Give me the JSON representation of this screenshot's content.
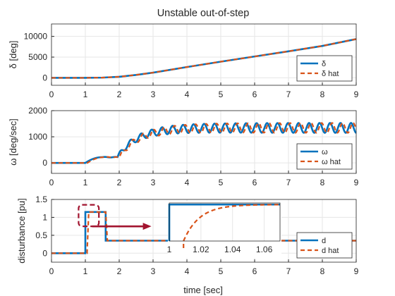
{
  "figure": {
    "title": "Unstable out-of-step",
    "xlabel": "time [sec]"
  },
  "colors": {
    "series1": "#0072BD",
    "series2": "#D95319",
    "grid": "#e6e6e6",
    "axis": "#262626",
    "arrow": "#A2142F",
    "box": "#A2142F"
  },
  "chart_data": [
    {
      "type": "line",
      "title": "Unstable out-of-step",
      "ylabel": "δ [deg]",
      "xlim": [
        0,
        9
      ],
      "ylim": [
        -1800,
        13000
      ],
      "xticks": [
        "0",
        "1",
        "2",
        "3",
        "4",
        "5",
        "6",
        "7",
        "8",
        "9"
      ],
      "yticks": [
        {
          "v": 0,
          "label": "0"
        },
        {
          "v": 5000,
          "label": "5000"
        },
        {
          "v": 10000,
          "label": "10000"
        }
      ],
      "grid": true,
      "legend_location": "lower-right",
      "x": [
        0,
        1,
        1.5,
        2,
        2.5,
        3,
        4,
        5,
        6,
        7,
        8,
        9
      ],
      "series": [
        {
          "name": "δ",
          "style": "solid",
          "values": [
            0,
            0,
            50,
            250,
            700,
            1250,
            2600,
            3900,
            5150,
            6400,
            7700,
            9350
          ]
        },
        {
          "name": "δ hat",
          "style": "dashed",
          "values": [
            0,
            0,
            50,
            250,
            700,
            1250,
            2600,
            3900,
            5150,
            6400,
            7700,
            9350
          ]
        }
      ]
    },
    {
      "type": "line",
      "ylabel": "ω [deg/sec]",
      "xlim": [
        0,
        9
      ],
      "ylim": [
        -400,
        2000
      ],
      "xticks": [
        "0",
        "1",
        "2",
        "3",
        "4",
        "5",
        "6",
        "7",
        "8",
        "9"
      ],
      "yticks": [
        {
          "v": 0,
          "label": "0"
        },
        {
          "v": 1000,
          "label": "1000"
        },
        {
          "v": 2000,
          "label": "2000"
        }
      ],
      "grid": true,
      "legend_location": "lower-right",
      "model": {
        "t_start": 1.0,
        "plateau": 220,
        "t_rise": 1.95,
        "mean_final": 1290,
        "tau_mean": 0.6,
        "amp_final": 190,
        "amp_start": 80,
        "tau_amp": 1.5,
        "period": 0.31,
        "hat_lag": 0.06
      },
      "series": [
        {
          "name": "ω",
          "style": "solid"
        },
        {
          "name": "ω hat",
          "style": "dashed"
        }
      ]
    },
    {
      "type": "line",
      "ylabel": "disturbance [pu]",
      "xlim": [
        0,
        9
      ],
      "ylim": [
        -0.25,
        1.5
      ],
      "xticks": [
        "0",
        "1",
        "2",
        "3",
        "4",
        "5",
        "6",
        "7",
        "8",
        "9"
      ],
      "yticks": [
        {
          "v": 0,
          "label": "0"
        },
        {
          "v": 0.5,
          "label": "0.5"
        },
        {
          "v": 1,
          "label": "1"
        },
        {
          "v": 1.5,
          "label": "1.5"
        }
      ],
      "grid": true,
      "legend_location": "lower-right",
      "series": [
        {
          "name": "d",
          "style": "solid",
          "x": [
            0,
            1,
            1,
            1.6,
            1.6,
            9
          ],
          "values": [
            0,
            0,
            1.15,
            1.15,
            0.35,
            0.35
          ]
        },
        {
          "name": "d hat",
          "style": "dashed",
          "x": [
            0,
            1.05,
            1.1,
            1.6,
            1.65,
            9
          ],
          "values": [
            0,
            0,
            1.15,
            1.15,
            0.35,
            0.35
          ]
        }
      ],
      "highlight_box": {
        "x": [
          0.8,
          1.4
        ],
        "y": [
          0.75,
          1.35
        ]
      },
      "inset": {
        "xlim": [
          1,
          1.07
        ],
        "ylim": [
          0,
          1.2
        ],
        "xticks": [
          "1",
          "1.02",
          "1.04",
          "1.06"
        ],
        "d": {
          "x": [
            1,
            1,
            1.07
          ],
          "values": [
            0,
            1.15,
            1.15
          ]
        },
        "d_hat": {
          "start": 1.009,
          "final": 1.15,
          "tau": 0.01,
          "end": 1.07
        }
      }
    }
  ]
}
